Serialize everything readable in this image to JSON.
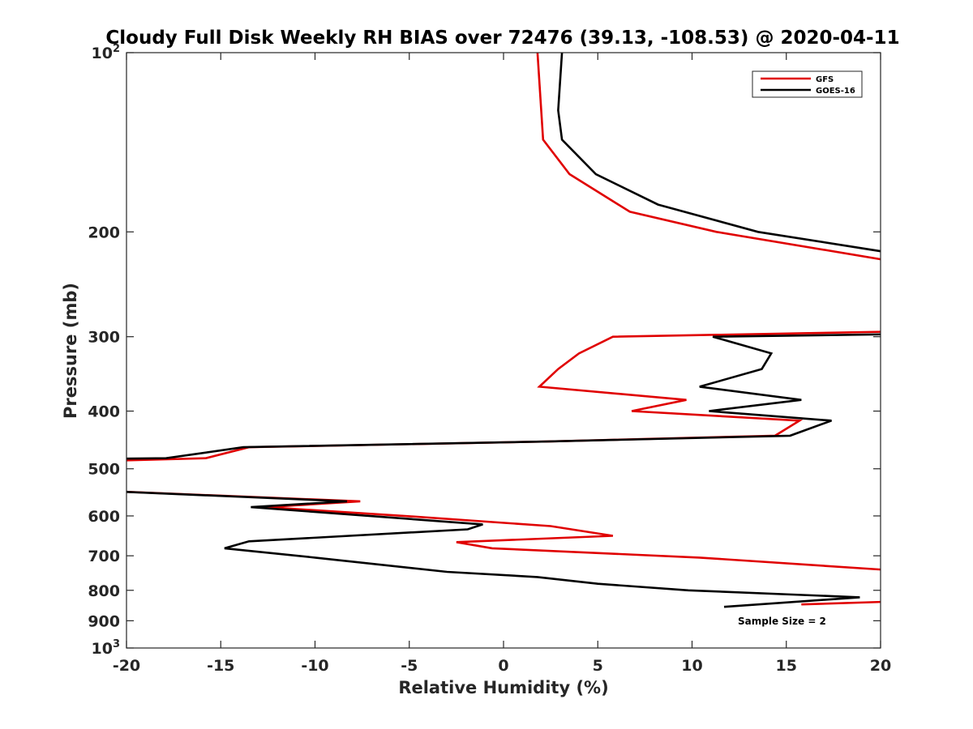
{
  "chart_data": {
    "type": "line",
    "title": "Cloudy Full Disk Weekly RH BIAS over 72476 (39.13, -108.53) @ 2020-04-11",
    "xlabel": "Relative Humidity (%)",
    "ylabel": "Pressure (mb)",
    "xlim": [
      -20,
      20
    ],
    "ylim": [
      100,
      1000
    ],
    "y_scale": "log",
    "y_reversed": true,
    "grid": false,
    "legend_position": "top-right",
    "x_ticks": [
      -20,
      -15,
      -10,
      -5,
      0,
      5,
      10,
      15,
      20
    ],
    "x_tick_labels": [
      "-20",
      "-15",
      "-10",
      "-5",
      "0",
      "5",
      "10",
      "15",
      "20"
    ],
    "y_ticks": [
      {
        "value": 100,
        "base": "10",
        "exp": "2"
      },
      {
        "value": 200,
        "label": "200"
      },
      {
        "value": 300,
        "label": "300"
      },
      {
        "value": 400,
        "label": "400"
      },
      {
        "value": 500,
        "label": "500"
      },
      {
        "value": 600,
        "label": "600"
      },
      {
        "value": 700,
        "label": "700"
      },
      {
        "value": 800,
        "label": "800"
      },
      {
        "value": 900,
        "label": "900"
      },
      {
        "value": 1000,
        "base": "10",
        "exp": "3"
      }
    ],
    "series": [
      {
        "name": "GFS",
        "color": "#e00000",
        "segments": [
          [
            [
              1.8,
              100
            ],
            [
              2.1,
              140
            ],
            [
              3.5,
              160
            ],
            [
              6.7,
              185
            ],
            [
              11.3,
              200
            ],
            [
              21,
              225
            ]
          ],
          [
            [
              21,
              294
            ],
            [
              5.8,
              300
            ],
            [
              4,
              320
            ],
            [
              2.9,
              340
            ],
            [
              1.9,
              364
            ],
            [
              9.7,
              383
            ],
            [
              6.8,
              400
            ],
            [
              15.7,
              415
            ],
            [
              14.4,
              440
            ],
            [
              2.3,
              450
            ],
            [
              -13.5,
              460
            ],
            [
              -15.8,
              480
            ],
            [
              -21,
              485
            ]
          ],
          [
            [
              -21,
              545
            ],
            [
              -7.6,
              567
            ],
            [
              -12.6,
              580
            ],
            [
              -5.3,
              600
            ],
            [
              2.5,
              624
            ],
            [
              5.8,
              648
            ],
            [
              -2.5,
              664
            ],
            [
              -0.6,
              680
            ],
            [
              10.4,
              705
            ],
            [
              20.5,
              740
            ]
          ],
          [
            [
              15.8,
              845
            ],
            [
              21,
              835
            ]
          ]
        ]
      },
      {
        "name": "GOES-16",
        "color": "#000000",
        "segments": [
          [
            [
              3.1,
              100
            ],
            [
              2.9,
              125
            ],
            [
              3.1,
              140
            ],
            [
              4.9,
              160
            ],
            [
              8.2,
              180
            ],
            [
              13.5,
              200
            ],
            [
              21,
              218
            ]
          ],
          [
            [
              21,
              297
            ],
            [
              11.1,
              300
            ],
            [
              14.2,
              320
            ],
            [
              13.7,
              340
            ],
            [
              10.4,
              364
            ],
            [
              15.8,
              383
            ],
            [
              10.9,
              400
            ],
            [
              17.4,
              415
            ],
            [
              15.2,
              440
            ],
            [
              2.3,
              450
            ],
            [
              -13.8,
              460
            ],
            [
              -17.9,
              480
            ],
            [
              -21,
              481
            ]
          ],
          [
            [
              -21,
              545
            ],
            [
              -8.3,
              567
            ],
            [
              -13.4,
              580
            ],
            [
              -1.1,
              620
            ],
            [
              -1.9,
              632
            ],
            [
              -13.5,
              662
            ],
            [
              -14.8,
              680
            ],
            [
              -10,
              705
            ],
            [
              -3,
              745
            ],
            [
              1.8,
              760
            ],
            [
              5,
              780
            ],
            [
              9.8,
              800
            ],
            [
              18.9,
              822
            ],
            [
              11.7,
              853
            ]
          ]
        ]
      }
    ],
    "annotation": "Sample Size = 2"
  }
}
